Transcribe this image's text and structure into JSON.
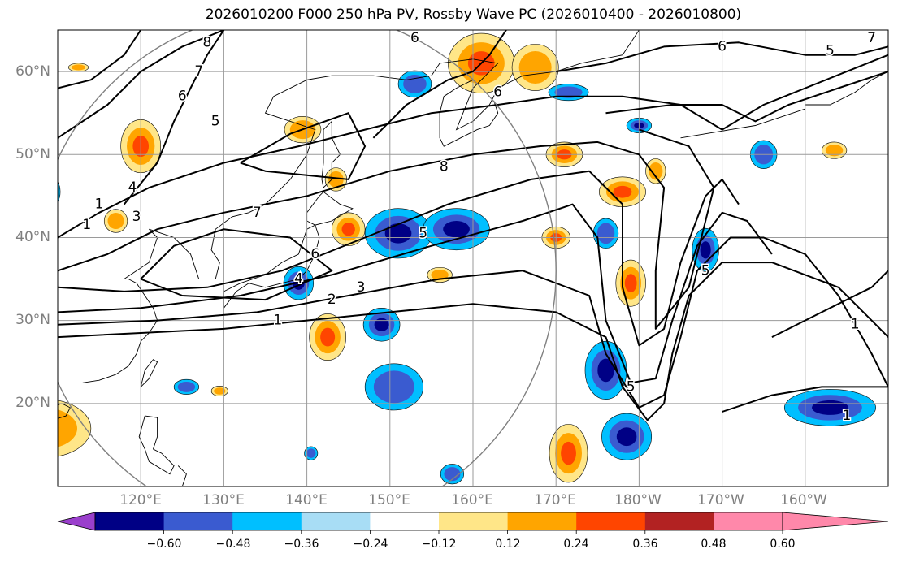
{
  "figure": {
    "title": "2026010200 F000 250 hPa PV, Rossby Wave PC (2026010400 - 2026010800)"
  },
  "map": {
    "projection": "PlateCarree (central longitude 180)",
    "lon_range": [
      110,
      210
    ],
    "lat_range": [
      10,
      65
    ],
    "grid": true,
    "lat_ticks": [
      "20°N",
      "30°N",
      "40°N",
      "50°N",
      "60°N"
    ],
    "lon_ticks": [
      "120°E",
      "130°E",
      "140°E",
      "150°E",
      "160°E",
      "170°E",
      "180°W",
      "170°W",
      "160°W"
    ],
    "circle": {
      "center_lon": 138.5,
      "center_lat": 36,
      "radius_deg": 31.5,
      "color": "#808080"
    },
    "contour_labels": [
      "1",
      "2",
      "3",
      "4",
      "5",
      "6",
      "7",
      "8",
      "1",
      "3",
      "4",
      "5",
      "6",
      "7",
      "8",
      "6",
      "6",
      "5",
      "7",
      "6",
      "1",
      "5",
      "1",
      "5",
      "1"
    ]
  },
  "colorbar": {
    "orientation": "horizontal",
    "extend": "both",
    "ticks": [
      "−0.60",
      "−0.48",
      "−0.36",
      "−0.24",
      "−0.12",
      "0.12",
      "0.24",
      "0.36",
      "0.48",
      "0.60"
    ],
    "colors": [
      "#9a3fcc",
      "#000085",
      "#3a5bd0",
      "#00bfff",
      "#a8ddf5",
      "#ffffff",
      "#ffe688",
      "#ffa500",
      "#ff4500",
      "#b22222",
      "#ff88aa"
    ]
  },
  "shading": {
    "positive_levels": [
      "#ffe688",
      "#ffa500",
      "#ff4500"
    ],
    "negative_levels": [
      "#00bfff",
      "#3a5bd0",
      "#000085"
    ]
  }
}
